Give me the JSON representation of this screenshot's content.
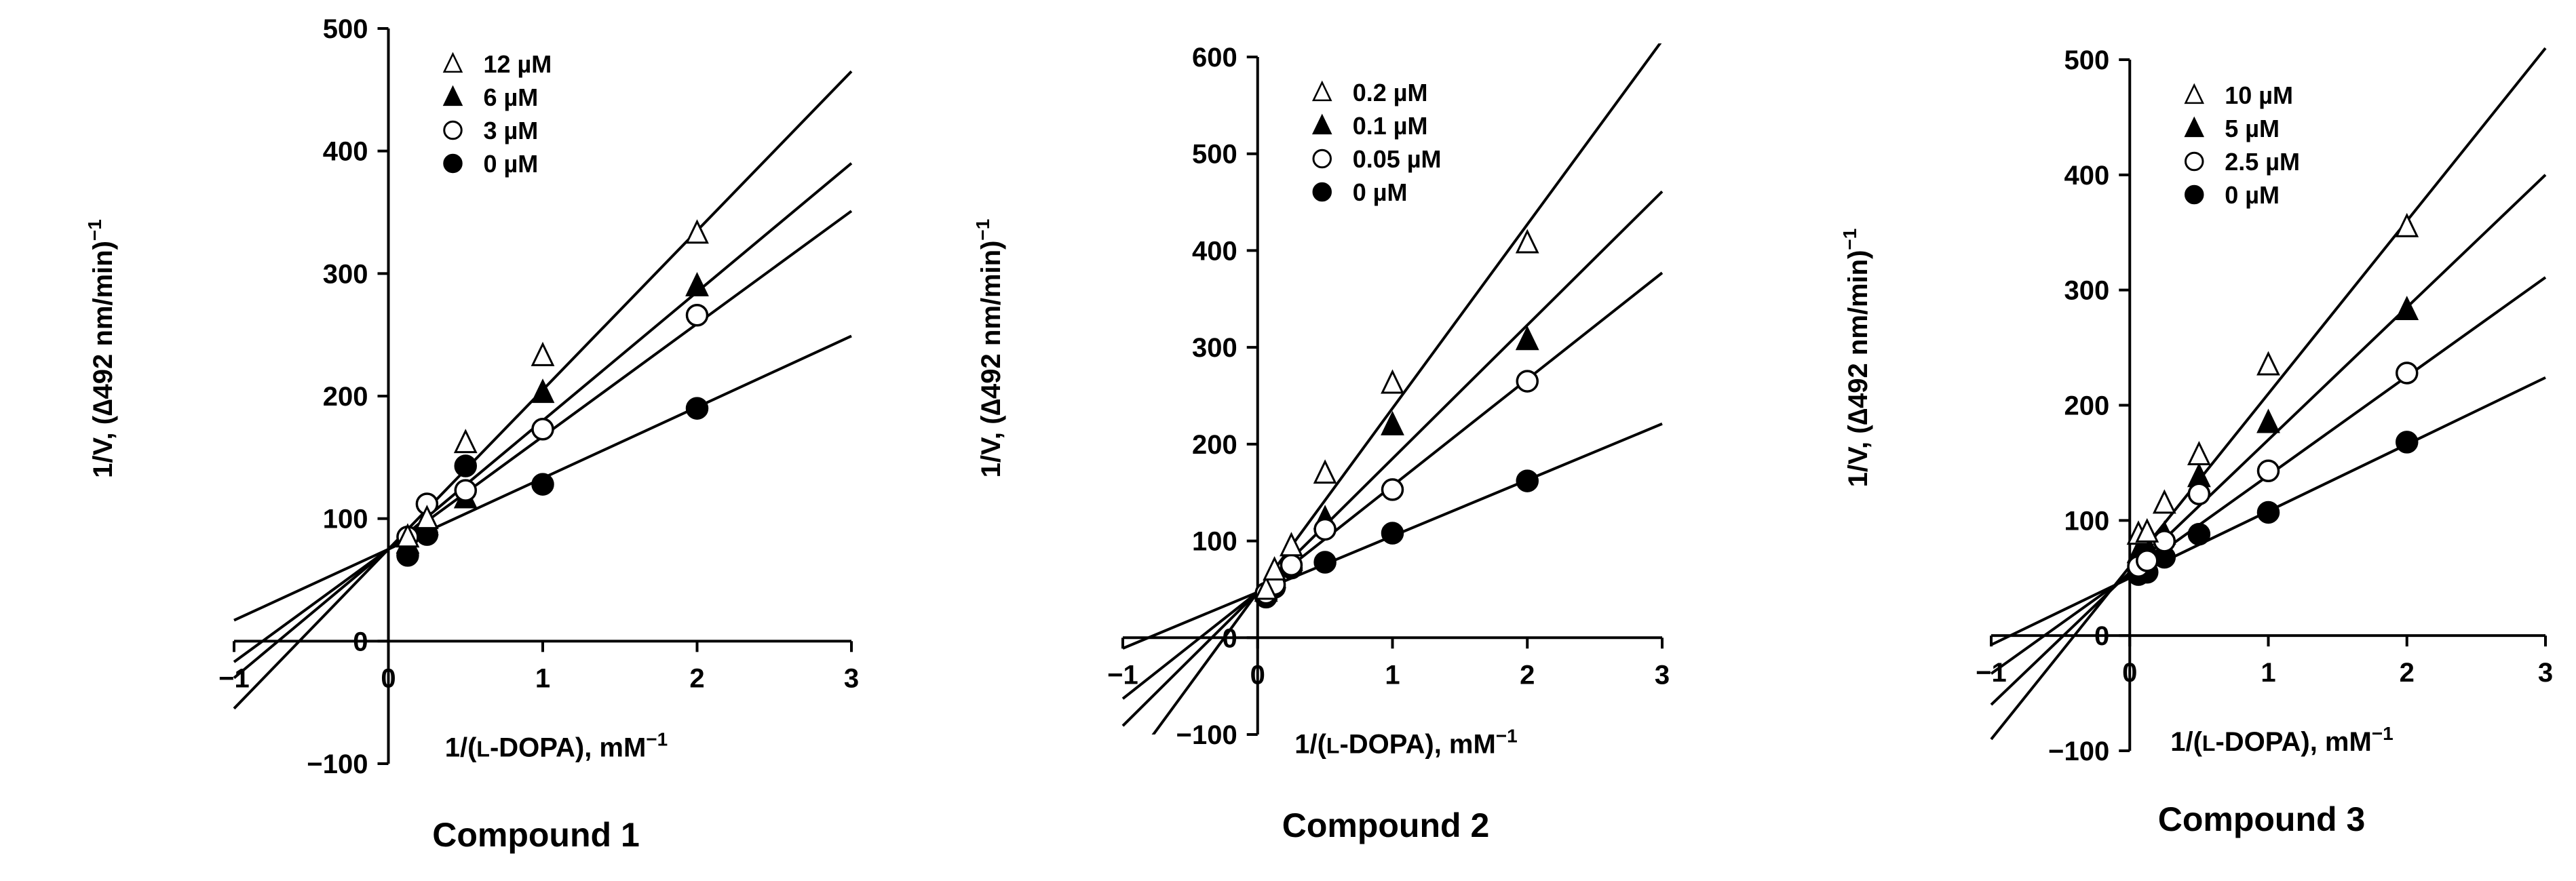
{
  "colors": {
    "ink": "#000000",
    "background": "#ffffff"
  },
  "chart_data": [
    {
      "type": "scatter",
      "title": "Compound 1",
      "xlabel_parts": [
        "1/(",
        "L",
        "-DOPA), mM",
        "−1"
      ],
      "ylabel_parts": [
        "1/V, (",
        "∆",
        "492 nm/min)",
        "−1"
      ],
      "xlim": [
        -1,
        3
      ],
      "ylim": [
        -100,
        500
      ],
      "xticks": [
        -1,
        0,
        1,
        2,
        3
      ],
      "xtick_labels": [
        "−1",
        "0",
        "1",
        "2",
        "3"
      ],
      "yticks": [
        -100,
        0,
        100,
        200,
        300,
        400,
        500
      ],
      "ytick_labels": [
        "−100",
        "0",
        "100",
        "200",
        "300",
        "400",
        "500"
      ],
      "legend_position": "top-left",
      "series": [
        {
          "name": "12 µM",
          "marker": "open-triangle",
          "x": [
            0.125,
            0.25,
            0.5,
            1,
            2
          ],
          "y": [
            85,
            100,
            162,
            233,
            333
          ],
          "fit": {
            "slope": 130,
            "intercept": 75
          }
        },
        {
          "name": "6 µM",
          "marker": "filled-triangle",
          "x": [
            0.125,
            0.25,
            0.5,
            1,
            2
          ],
          "y": [
            80,
            95,
            117,
            203,
            290
          ],
          "fit": {
            "slope": 105,
            "intercept": 75
          }
        },
        {
          "name": "3 µM",
          "marker": "open-circle",
          "x": [
            0.125,
            0.25,
            0.5,
            1,
            2
          ],
          "y": [
            85,
            112,
            123,
            173,
            266
          ],
          "fit": {
            "slope": 92,
            "intercept": 75
          }
        },
        {
          "name": "0 µM",
          "marker": "filled-circle",
          "x": [
            0.125,
            0.25,
            0.5,
            1,
            2
          ],
          "y": [
            70,
            87,
            143,
            128,
            190
          ],
          "fit": {
            "slope": 58,
            "intercept": 75
          }
        }
      ]
    },
    {
      "type": "scatter",
      "title": "Compound 2",
      "xlabel_parts": [
        "1/(",
        "L",
        "-DOPA), mM",
        "−1"
      ],
      "ylabel_parts": [
        "1/V, (",
        "∆",
        "492 nm/min)",
        "−1"
      ],
      "xlim": [
        -1,
        3
      ],
      "ylim": [
        -100,
        600
      ],
      "xticks": [
        -1,
        0,
        1,
        2,
        3
      ],
      "xtick_labels": [
        "−1",
        "0",
        "1",
        "2",
        "3"
      ],
      "yticks": [
        -100,
        0,
        100,
        200,
        300,
        400,
        500,
        600
      ],
      "ytick_labels": [
        "−100",
        "0",
        "100",
        "200",
        "300",
        "400",
        "500",
        "600"
      ],
      "legend_position": "top-left",
      "series": [
        {
          "name": "0.2 µM",
          "marker": "open-triangle",
          "x": [
            0.0625,
            0.125,
            0.25,
            0.5,
            1,
            2
          ],
          "y": [
            50,
            70,
            95,
            170,
            263,
            408
          ],
          "fit": {
            "slope": 190,
            "intercept": 47
          }
        },
        {
          "name": "0.1 µM",
          "marker": "filled-triangle",
          "x": [
            0.0625,
            0.125,
            0.25,
            0.5,
            1,
            2
          ],
          "y": [
            48,
            62,
            80,
            123,
            220,
            308
          ],
          "fit": {
            "slope": 138,
            "intercept": 47
          }
        },
        {
          "name": "0.05 µM",
          "marker": "open-circle",
          "x": [
            0.0625,
            0.125,
            0.25,
            0.5,
            1,
            2
          ],
          "y": [
            46,
            55,
            75,
            112,
            153,
            265
          ],
          "fit": {
            "slope": 110,
            "intercept": 47
          }
        },
        {
          "name": "0 µM",
          "marker": "filled-circle",
          "x": [
            0.0625,
            0.125,
            0.25,
            0.5,
            1,
            2
          ],
          "y": [
            42,
            52,
            72,
            78,
            108,
            162
          ],
          "fit": {
            "slope": 58,
            "intercept": 47
          }
        }
      ]
    },
    {
      "type": "scatter",
      "title": "Compound 3",
      "xlabel_parts": [
        "1/(",
        "L",
        "-DOPA), mM",
        "−1"
      ],
      "ylabel_parts": [
        "1/V, (",
        "∆",
        "492 nm/min)",
        "−1"
      ],
      "xlim": [
        -1,
        3
      ],
      "ylim": [
        -100,
        500
      ],
      "xticks": [
        -1,
        0,
        1,
        2,
        3
      ],
      "xtick_labels": [
        "−1",
        "0",
        "1",
        "2",
        "3"
      ],
      "yticks": [
        -100,
        0,
        100,
        200,
        300,
        400,
        500
      ],
      "ytick_labels": [
        "−100",
        "0",
        "100",
        "200",
        "300",
        "400",
        "500"
      ],
      "legend_position": "top-left",
      "series": [
        {
          "name": "10 µM",
          "marker": "open-triangle",
          "x": [
            0.0625,
            0.125,
            0.25,
            0.5,
            1,
            2
          ],
          "y": [
            88,
            90,
            115,
            157,
            235,
            355
          ],
          "fit": {
            "slope": 150,
            "intercept": 60
          }
        },
        {
          "name": "5 µM",
          "marker": "filled-triangle",
          "x": [
            0.0625,
            0.125,
            0.25,
            0.5,
            1,
            2
          ],
          "y": [
            72,
            78,
            88,
            138,
            185,
            283
          ],
          "fit": {
            "slope": 115,
            "intercept": 55
          }
        },
        {
          "name": "2.5 µM",
          "marker": "open-circle",
          "x": [
            0.0625,
            0.125,
            0.25,
            0.5,
            1,
            2
          ],
          "y": [
            60,
            65,
            82,
            123,
            143,
            228
          ],
          "fit": {
            "slope": 86,
            "intercept": 53
          }
        },
        {
          "name": "0 µM",
          "marker": "filled-circle",
          "x": [
            0.0625,
            0.125,
            0.25,
            0.5,
            1,
            2
          ],
          "y": [
            53,
            55,
            68,
            88,
            107,
            168
          ],
          "fit": {
            "slope": 58,
            "intercept": 50
          }
        }
      ]
    }
  ]
}
